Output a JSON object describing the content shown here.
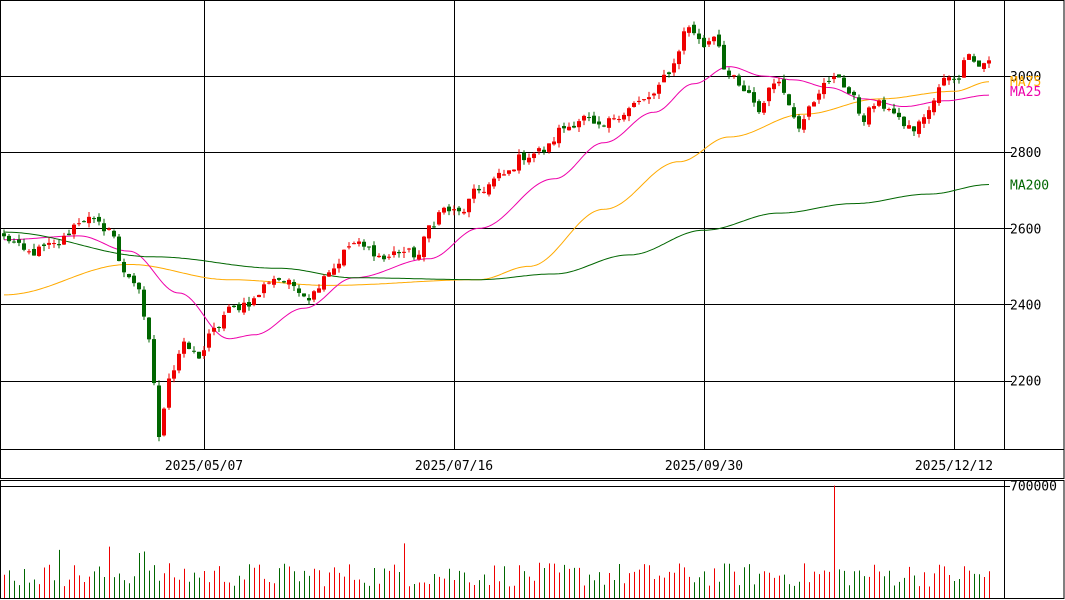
{
  "chart_data": {
    "type": "candlestick",
    "price_axis": {
      "ticks": [
        {
          "v": 2200,
          "label": "2200"
        },
        {
          "v": 2400,
          "label": "2400"
        },
        {
          "v": 2600,
          "label": "2600"
        },
        {
          "v": 2800,
          "label": "2800"
        },
        {
          "v": 3000,
          "label": "3000"
        }
      ],
      "range": [
        2020,
        3200
      ]
    },
    "volume_axis": {
      "ticks": [
        {
          "v": 700000,
          "label": "700000"
        }
      ],
      "range": [
        0,
        735000
      ]
    },
    "date_labels": [
      {
        "index": 40,
        "label": "2025/05/07"
      },
      {
        "index": 90,
        "label": "2025/07/16"
      },
      {
        "index": 140,
        "label": "2025/09/30"
      },
      {
        "index": 190,
        "label": "2025/12/12"
      }
    ],
    "colors": {
      "up": "#ee0000",
      "down": "#006600",
      "ma5": "#ffaa00",
      "ma25": "#ee00aa",
      "ma200": "#006600",
      "grid": "#000000"
    },
    "ma_labels": [
      {
        "key": "ma75",
        "label": "MA75",
        "color": "#ffaa00",
        "last": 2980
      },
      {
        "key": "ma25",
        "label": "MA25",
        "color": "#ee00aa",
        "last": 2948
      },
      {
        "key": "ma200",
        "label": "MA200",
        "color": "#006600",
        "last": 2712
      }
    ],
    "anchors": [
      [
        0,
        2575
      ],
      [
        5,
        2535
      ],
      [
        10,
        2555
      ],
      [
        16,
        2625
      ],
      [
        21,
        2600
      ],
      [
        24,
        2490
      ],
      [
        27,
        2430
      ],
      [
        29,
        2310
      ],
      [
        31,
        2060
      ],
      [
        33,
        2210
      ],
      [
        36,
        2290
      ],
      [
        39,
        2265
      ],
      [
        42,
        2330
      ],
      [
        45,
        2385
      ],
      [
        49,
        2405
      ],
      [
        54,
        2470
      ],
      [
        58,
        2450
      ],
      [
        61,
        2420
      ],
      [
        65,
        2490
      ],
      [
        70,
        2560
      ],
      [
        73,
        2545
      ],
      [
        76,
        2520
      ],
      [
        79,
        2540
      ],
      [
        83,
        2530
      ],
      [
        85,
        2605
      ],
      [
        88,
        2650
      ],
      [
        91,
        2640
      ],
      [
        95,
        2700
      ],
      [
        100,
        2740
      ],
      [
        104,
        2790
      ],
      [
        108,
        2805
      ],
      [
        112,
        2865
      ],
      [
        116,
        2890
      ],
      [
        119,
        2860
      ],
      [
        123,
        2900
      ],
      [
        127,
        2930
      ],
      [
        130,
        2950
      ],
      [
        133,
        3015
      ],
      [
        137,
        3130
      ],
      [
        140,
        3080
      ],
      [
        142,
        3110
      ],
      [
        145,
        3000
      ],
      [
        148,
        2960
      ],
      [
        151,
        2910
      ],
      [
        154,
        2990
      ],
      [
        156,
        2960
      ],
      [
        159,
        2865
      ],
      [
        161,
        2930
      ],
      [
        164,
        2975
      ],
      [
        167,
        3000
      ],
      [
        169,
        2955
      ],
      [
        172,
        2890
      ],
      [
        174,
        2925
      ],
      [
        177,
        2920
      ],
      [
        179,
        2880
      ],
      [
        182,
        2860
      ],
      [
        185,
        2910
      ],
      [
        188,
        2990
      ],
      [
        191,
        3000
      ],
      [
        193,
        3070
      ],
      [
        195,
        3025
      ],
      [
        197,
        3045
      ]
    ],
    "ma_series": {
      "ma75": [
        [
          0,
          2425
        ],
        [
          25,
          2505
        ],
        [
          45,
          2465
        ],
        [
          65,
          2450
        ],
        [
          95,
          2465
        ],
        [
          105,
          2500
        ],
        [
          120,
          2650
        ],
        [
          135,
          2775
        ],
        [
          145,
          2840
        ],
        [
          160,
          2900
        ],
        [
          175,
          2940
        ],
        [
          190,
          2960
        ],
        [
          197,
          2985
        ]
      ],
      "ma25": [
        [
          0,
          2570
        ],
        [
          15,
          2580
        ],
        [
          25,
          2540
        ],
        [
          35,
          2430
        ],
        [
          45,
          2310
        ],
        [
          50,
          2320
        ],
        [
          60,
          2390
        ],
        [
          70,
          2470
        ],
        [
          85,
          2520
        ],
        [
          95,
          2600
        ],
        [
          110,
          2730
        ],
        [
          120,
          2825
        ],
        [
          130,
          2905
        ],
        [
          138,
          2980
        ],
        [
          145,
          3025
        ],
        [
          152,
          3000
        ],
        [
          158,
          2990
        ],
        [
          165,
          2970
        ],
        [
          172,
          2940
        ],
        [
          180,
          2920
        ],
        [
          188,
          2935
        ],
        [
          197,
          2950
        ]
      ],
      "ma200": [
        [
          0,
          2590
        ],
        [
          30,
          2525
        ],
        [
          55,
          2495
        ],
        [
          70,
          2470
        ],
        [
          95,
          2465
        ],
        [
          110,
          2480
        ],
        [
          125,
          2530
        ],
        [
          140,
          2595
        ],
        [
          155,
          2640
        ],
        [
          170,
          2665
        ],
        [
          185,
          2690
        ],
        [
          197,
          2715
        ]
      ]
    },
    "volume_spikes": [
      [
        11,
        300000
      ],
      [
        21,
        320000
      ],
      [
        27,
        280000
      ],
      [
        28,
        290000
      ],
      [
        80,
        340000
      ],
      [
        166,
        700000
      ]
    ]
  }
}
